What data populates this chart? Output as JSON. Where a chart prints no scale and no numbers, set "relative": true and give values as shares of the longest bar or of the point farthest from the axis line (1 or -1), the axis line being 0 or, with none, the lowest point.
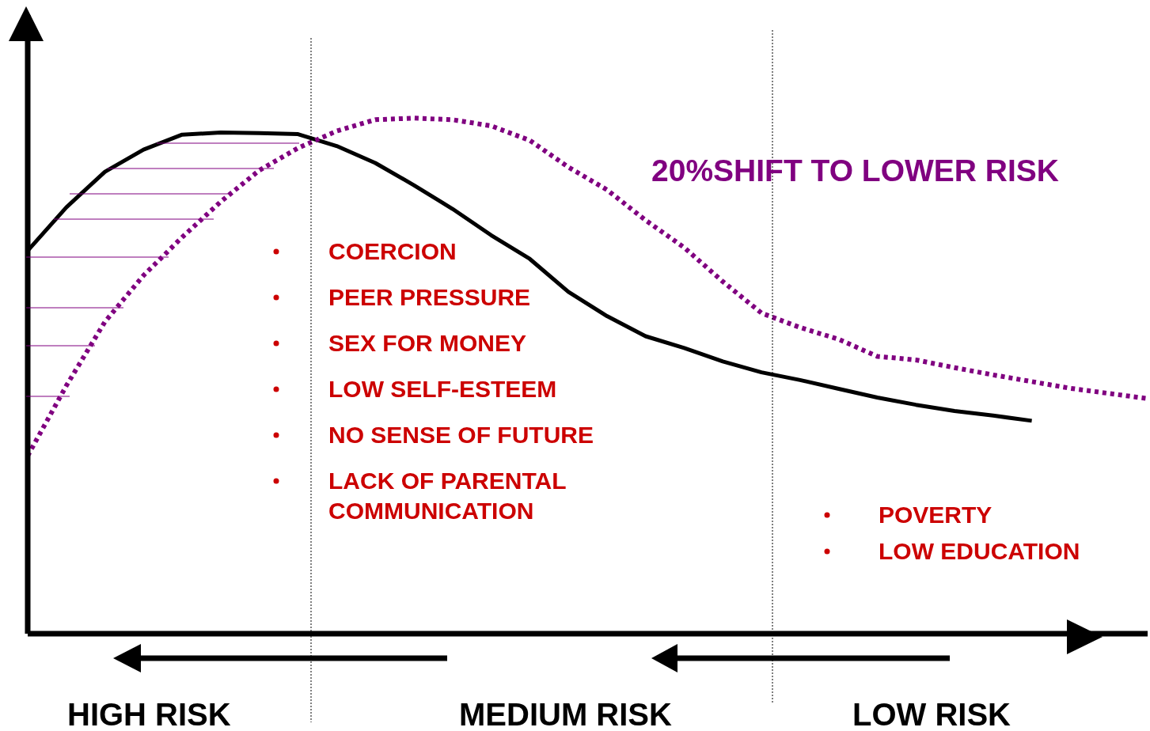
{
  "chart_data": {
    "type": "line",
    "relative": true,
    "categories": [
      null,
      null,
      null,
      null,
      null,
      null,
      null,
      null,
      null,
      null,
      null,
      null,
      null,
      null,
      null,
      null,
      null,
      null,
      null,
      null,
      null,
      null,
      null,
      null,
      null,
      null,
      null,
      null,
      null,
      null
    ],
    "series": [
      {
        "color": "#000000",
        "line_style": "solid",
        "values": [
          0.743,
          0.827,
          0.896,
          0.939,
          0.968,
          0.972,
          0.971,
          0.969,
          0.946,
          0.913,
          0.87,
          0.824,
          0.773,
          0.727,
          0.663,
          0.616,
          0.577,
          0.554,
          0.528,
          0.507,
          0.492,
          0.475,
          0.458,
          0.444,
          0.432,
          0.423,
          0.413,
          null,
          null,
          null
        ]
      },
      {
        "color": "#800080",
        "line_style": "dotted",
        "values": [
          0.345,
          0.481,
          0.605,
          0.695,
          0.769,
          0.838,
          0.899,
          0.942,
          0.975,
          0.997,
          1,
          0.997,
          0.985,
          0.957,
          0.905,
          0.861,
          0.802,
          0.749,
          0.683,
          0.622,
          0.594,
          0.571,
          0.538,
          0.531,
          0.516,
          0.502,
          0.489,
          0.476,
          0.466,
          0.456
        ]
      }
    ],
    "annotations": [
      "20%SHIFT TO LOWER RISK",
      "COERCION",
      "PEER PRESSURE",
      "SEX FOR MONEY",
      "LOW SELF-ESTEEM",
      "NO SENSE OF FUTURE",
      "LACK OF PARENTAL COMMUNICATION",
      "POVERTY",
      "LOW EDUCATION",
      "HIGH RISK",
      "MEDIUM RISK",
      "LOW RISK"
    ],
    "grid": false,
    "legend": false,
    "marker": "none"
  }
}
